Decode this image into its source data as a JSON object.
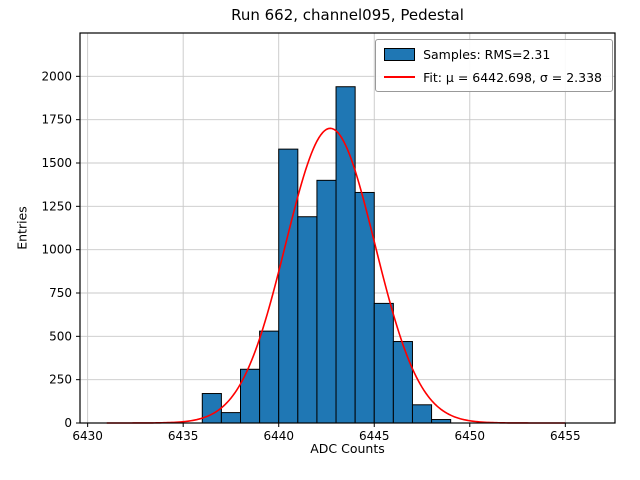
{
  "chart_data": {
    "type": "bar",
    "subtype": "histogram-with-gaussian-fit",
    "title": "Run 662, channel095, Pedestal",
    "xlabel": "ADC Counts",
    "ylabel": "Entries",
    "xlim": [
      6429.6,
      6457.6
    ],
    "ylim": [
      0,
      2250
    ],
    "xticks": [
      6430,
      6435,
      6440,
      6445,
      6450,
      6455
    ],
    "yticks": [
      0,
      250,
      500,
      750,
      1000,
      1250,
      1500,
      1750,
      2000
    ],
    "grid": true,
    "legend_position": "upper right",
    "colors": {
      "bar_fill": "#1f77b4",
      "bar_edge": "#000000",
      "fit_line": "#ff0000",
      "grid": "#c8c8c8",
      "spine": "#000000"
    },
    "legend": {
      "samples_label": "Samples: RMS=2.31",
      "fit_label": "Fit: μ = 6442.698, σ = 2.338"
    },
    "bins": [
      {
        "x": 6436,
        "width": 1,
        "count": 170
      },
      {
        "x": 6437,
        "width": 1,
        "count": 60
      },
      {
        "x": 6438,
        "width": 1,
        "count": 310
      },
      {
        "x": 6439,
        "width": 1,
        "count": 530
      },
      {
        "x": 6440,
        "width": 1,
        "count": 1580
      },
      {
        "x": 6441,
        "width": 1,
        "count": 1190
      },
      {
        "x": 6442,
        "width": 1,
        "count": 1400
      },
      {
        "x": 6443,
        "width": 1,
        "count": 1940
      },
      {
        "x": 6444,
        "width": 1,
        "count": 1330
      },
      {
        "x": 6445,
        "width": 1,
        "count": 690
      },
      {
        "x": 6446,
        "width": 1,
        "count": 470
      },
      {
        "x": 6447,
        "width": 1,
        "count": 105
      },
      {
        "x": 6448,
        "width": 1,
        "count": 20
      }
    ],
    "fit": {
      "mu": 6442.698,
      "sigma": 2.338,
      "amplitude": 1700,
      "curve_x_range": [
        6431,
        6455
      ]
    },
    "stats": {
      "rms": 2.31
    }
  }
}
